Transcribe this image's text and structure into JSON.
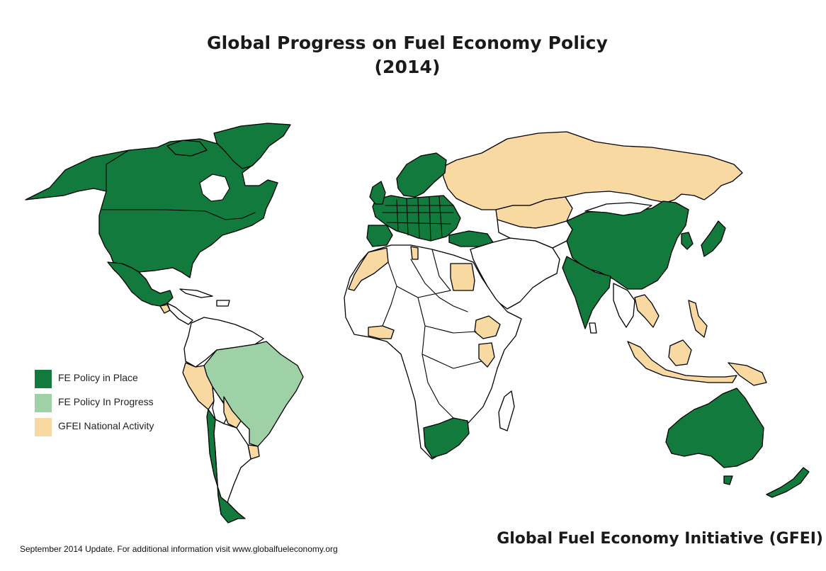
{
  "title": {
    "line1": "Global Progress on Fuel Economy Policy",
    "line2": "(2014)"
  },
  "legend": {
    "items": [
      {
        "label": "FE Policy in Place",
        "color": "#127a3c",
        "category": "in_place"
      },
      {
        "label": "FE Policy In Progress",
        "color": "#9fd1a6",
        "category": "in_progress"
      },
      {
        "label": "GFEI National Activity",
        "color": "#f8d9a2",
        "category": "national_activity"
      }
    ]
  },
  "colors": {
    "in_place": "#127a3c",
    "in_progress": "#9fd1a6",
    "national_activity": "#f8d9a2",
    "no_data": "#ffffff",
    "border": "#000000"
  },
  "map_regions": [
    {
      "region": "North America (Canada, USA, Mexico)",
      "category": "in_place"
    },
    {
      "region": "Greenland",
      "category": "in_place"
    },
    {
      "region": "Europe",
      "category": "in_place"
    },
    {
      "region": "Turkey",
      "category": "in_place"
    },
    {
      "region": "China",
      "category": "in_place"
    },
    {
      "region": "India",
      "category": "in_place"
    },
    {
      "region": "Japan",
      "category": "in_place"
    },
    {
      "region": "South Korea",
      "category": "in_place"
    },
    {
      "region": "South Africa",
      "category": "in_place"
    },
    {
      "region": "Australia",
      "category": "in_place"
    },
    {
      "region": "New Zealand",
      "category": "in_place"
    },
    {
      "region": "Chile",
      "category": "in_place"
    },
    {
      "region": "Brazil",
      "category": "in_progress"
    },
    {
      "region": "Russia",
      "category": "national_activity"
    },
    {
      "region": "Kazakhstan",
      "category": "national_activity"
    },
    {
      "region": "Egypt",
      "category": "national_activity"
    },
    {
      "region": "Ethiopia",
      "category": "national_activity"
    },
    {
      "region": "Kenya",
      "category": "national_activity"
    },
    {
      "region": "Peru",
      "category": "national_activity"
    },
    {
      "region": "Paraguay",
      "category": "national_activity"
    },
    {
      "region": "Uruguay",
      "category": "national_activity"
    },
    {
      "region": "Indonesia",
      "category": "national_activity"
    },
    {
      "region": "Philippines",
      "category": "national_activity"
    },
    {
      "region": "Thailand / Vietnam",
      "category": "national_activity"
    },
    {
      "region": "Ivory Coast / Ghana",
      "category": "national_activity"
    },
    {
      "region": "Morocco / Western Sahara",
      "category": "national_activity"
    },
    {
      "region": "Tunisia",
      "category": "national_activity"
    },
    {
      "region": "Costa Rica",
      "category": "national_activity"
    }
  ],
  "footer": {
    "note": "September 2014 Update. For additional information visit www.globalfueleconomy.org",
    "organization": "Global Fuel Economy Initiative (GFEI)"
  }
}
